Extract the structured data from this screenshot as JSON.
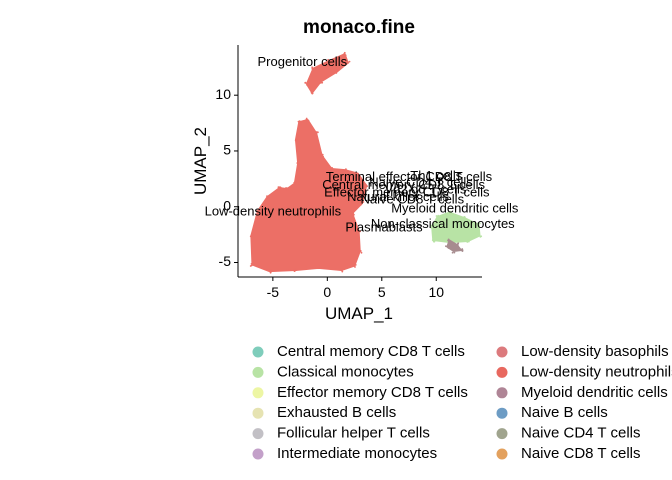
{
  "chart_data": {
    "type": "scatter",
    "title": "monaco.fine",
    "xlabel": "UMAP_1",
    "ylabel": "UMAP_2",
    "xlim": [
      -8.2,
      14.2
    ],
    "ylim": [
      -6.3,
      14.5
    ],
    "x_ticks": [
      -5,
      0,
      5,
      10
    ],
    "y_ticks": [
      -5,
      0,
      5,
      10
    ],
    "grid": false,
    "legend_position": "bottom",
    "legend": [
      {
        "label": "Central memory CD8 T cells",
        "color": "#7FCDBB"
      },
      {
        "label": "Classical monocytes",
        "color": "#B8E3A5"
      },
      {
        "label": "Effector memory CD8 T cells",
        "color": "#EDF6A4"
      },
      {
        "label": "Exhausted B cells",
        "color": "#E6E3B2"
      },
      {
        "label": "Follicular helper T cells",
        "color": "#C2C0C5"
      },
      {
        "label": "Intermediate monocytes",
        "color": "#C3A0C9"
      },
      {
        "label": "Low-density basophils",
        "color": "#DC7A7D"
      },
      {
        "label": "Low-density neutrophils",
        "color": "#E8685F"
      },
      {
        "label": "Myeloid dendritic cells",
        "color": "#AF8596"
      },
      {
        "label": "Naive B cells",
        "color": "#6D9CC4"
      },
      {
        "label": "Naive CD4 T cells",
        "color": "#A0A48E"
      },
      {
        "label": "Naive CD8 T cells",
        "color": "#E3A15E"
      }
    ],
    "clusters": [
      {
        "cell_type": "Low-density neutrophils",
        "color": "#EC6F66",
        "shape": [
          [
            -6.9,
            -5.2
          ],
          [
            -7.0,
            -2.6
          ],
          [
            -6.4,
            -0.4
          ],
          [
            -5.5,
            0.9
          ],
          [
            -4.4,
            1.7
          ],
          [
            -3.7,
            1.6
          ],
          [
            -3.0,
            2.1
          ],
          [
            -2.7,
            3.9
          ],
          [
            -2.9,
            6.0
          ],
          [
            -2.6,
            7.6
          ],
          [
            -1.8,
            7.8
          ],
          [
            -1.0,
            6.6
          ],
          [
            -0.5,
            4.6
          ],
          [
            0.4,
            3.4
          ],
          [
            1.6,
            3.3
          ],
          [
            2.8,
            3.0
          ],
          [
            3.6,
            1.9
          ],
          [
            3.2,
            0.3
          ],
          [
            2.3,
            -0.6
          ],
          [
            2.9,
            -2.2
          ],
          [
            3.0,
            -4.0
          ],
          [
            2.5,
            -5.3
          ],
          [
            1.3,
            -5.7
          ],
          [
            -0.8,
            -5.5
          ],
          [
            -2.9,
            -5.7
          ],
          [
            -5.3,
            -5.8
          ]
        ]
      },
      {
        "cell_type": "Progenitor cells",
        "color": "#EC6F66",
        "shape": [
          [
            -1.9,
            11.0
          ],
          [
            -1.3,
            12.4
          ],
          [
            0.2,
            13.1
          ],
          [
            1.6,
            13.7
          ],
          [
            1.9,
            12.9
          ],
          [
            0.9,
            12.1
          ],
          [
            -0.6,
            11.2
          ],
          [
            -1.4,
            10.2
          ]
        ]
      },
      {
        "cell_type": "Classical monocytes",
        "color": "#B8E3A5",
        "shape": [
          [
            9.7,
            -3.0
          ],
          [
            9.6,
            -1.8
          ],
          [
            10.1,
            -0.9
          ],
          [
            11.2,
            -0.5
          ],
          [
            12.6,
            -1.0
          ],
          [
            13.9,
            -1.6
          ],
          [
            14.0,
            -2.6
          ],
          [
            12.9,
            -3.1
          ],
          [
            11.3,
            -3.2
          ]
        ]
      },
      {
        "cell_type": "Intermediate monocytes",
        "color": "#A78C8F",
        "shape": [
          [
            11.2,
            -3.0
          ],
          [
            11.9,
            -3.4
          ],
          [
            12.3,
            -3.9
          ],
          [
            11.6,
            -4.0
          ],
          [
            11.0,
            -3.6
          ]
        ]
      }
    ],
    "annotations": [
      {
        "text": "Progenitor cells",
        "x": -2.3,
        "y": 12.9
      },
      {
        "text": "Low-density neutrophils",
        "x": -5.0,
        "y": -0.5
      },
      {
        "text": "Myeloid dendritic cells",
        "x": 11.7,
        "y": -0.2
      },
      {
        "text": "Plasmablasts",
        "x": 5.2,
        "y": -1.9
      },
      {
        "text": "Non-classical monocytes",
        "x": 10.6,
        "y": -1.6
      },
      {
        "text": "Terminal effector CD8 T cells",
        "x": 7.5,
        "y": 2.6
      },
      {
        "text": "Central memory CD8 T cells",
        "x": 7.0,
        "y": 1.9
      },
      {
        "text": "Effector memory CD8 T cells",
        "x": 7.3,
        "y": 1.2
      },
      {
        "text": "Naive CD8 T cells",
        "x": 7.8,
        "y": 0.6
      },
      {
        "text": "Naive CD4 T cells",
        "x": 8.6,
        "y": 2.1
      },
      {
        "text": "Natural killer cells",
        "x": 6.5,
        "y": 0.8
      },
      {
        "text": "Vd2 gd T cells",
        "x": 9.0,
        "y": 1.5
      },
      {
        "text": "Th1 cells",
        "x": 10.0,
        "y": 2.7
      }
    ]
  }
}
